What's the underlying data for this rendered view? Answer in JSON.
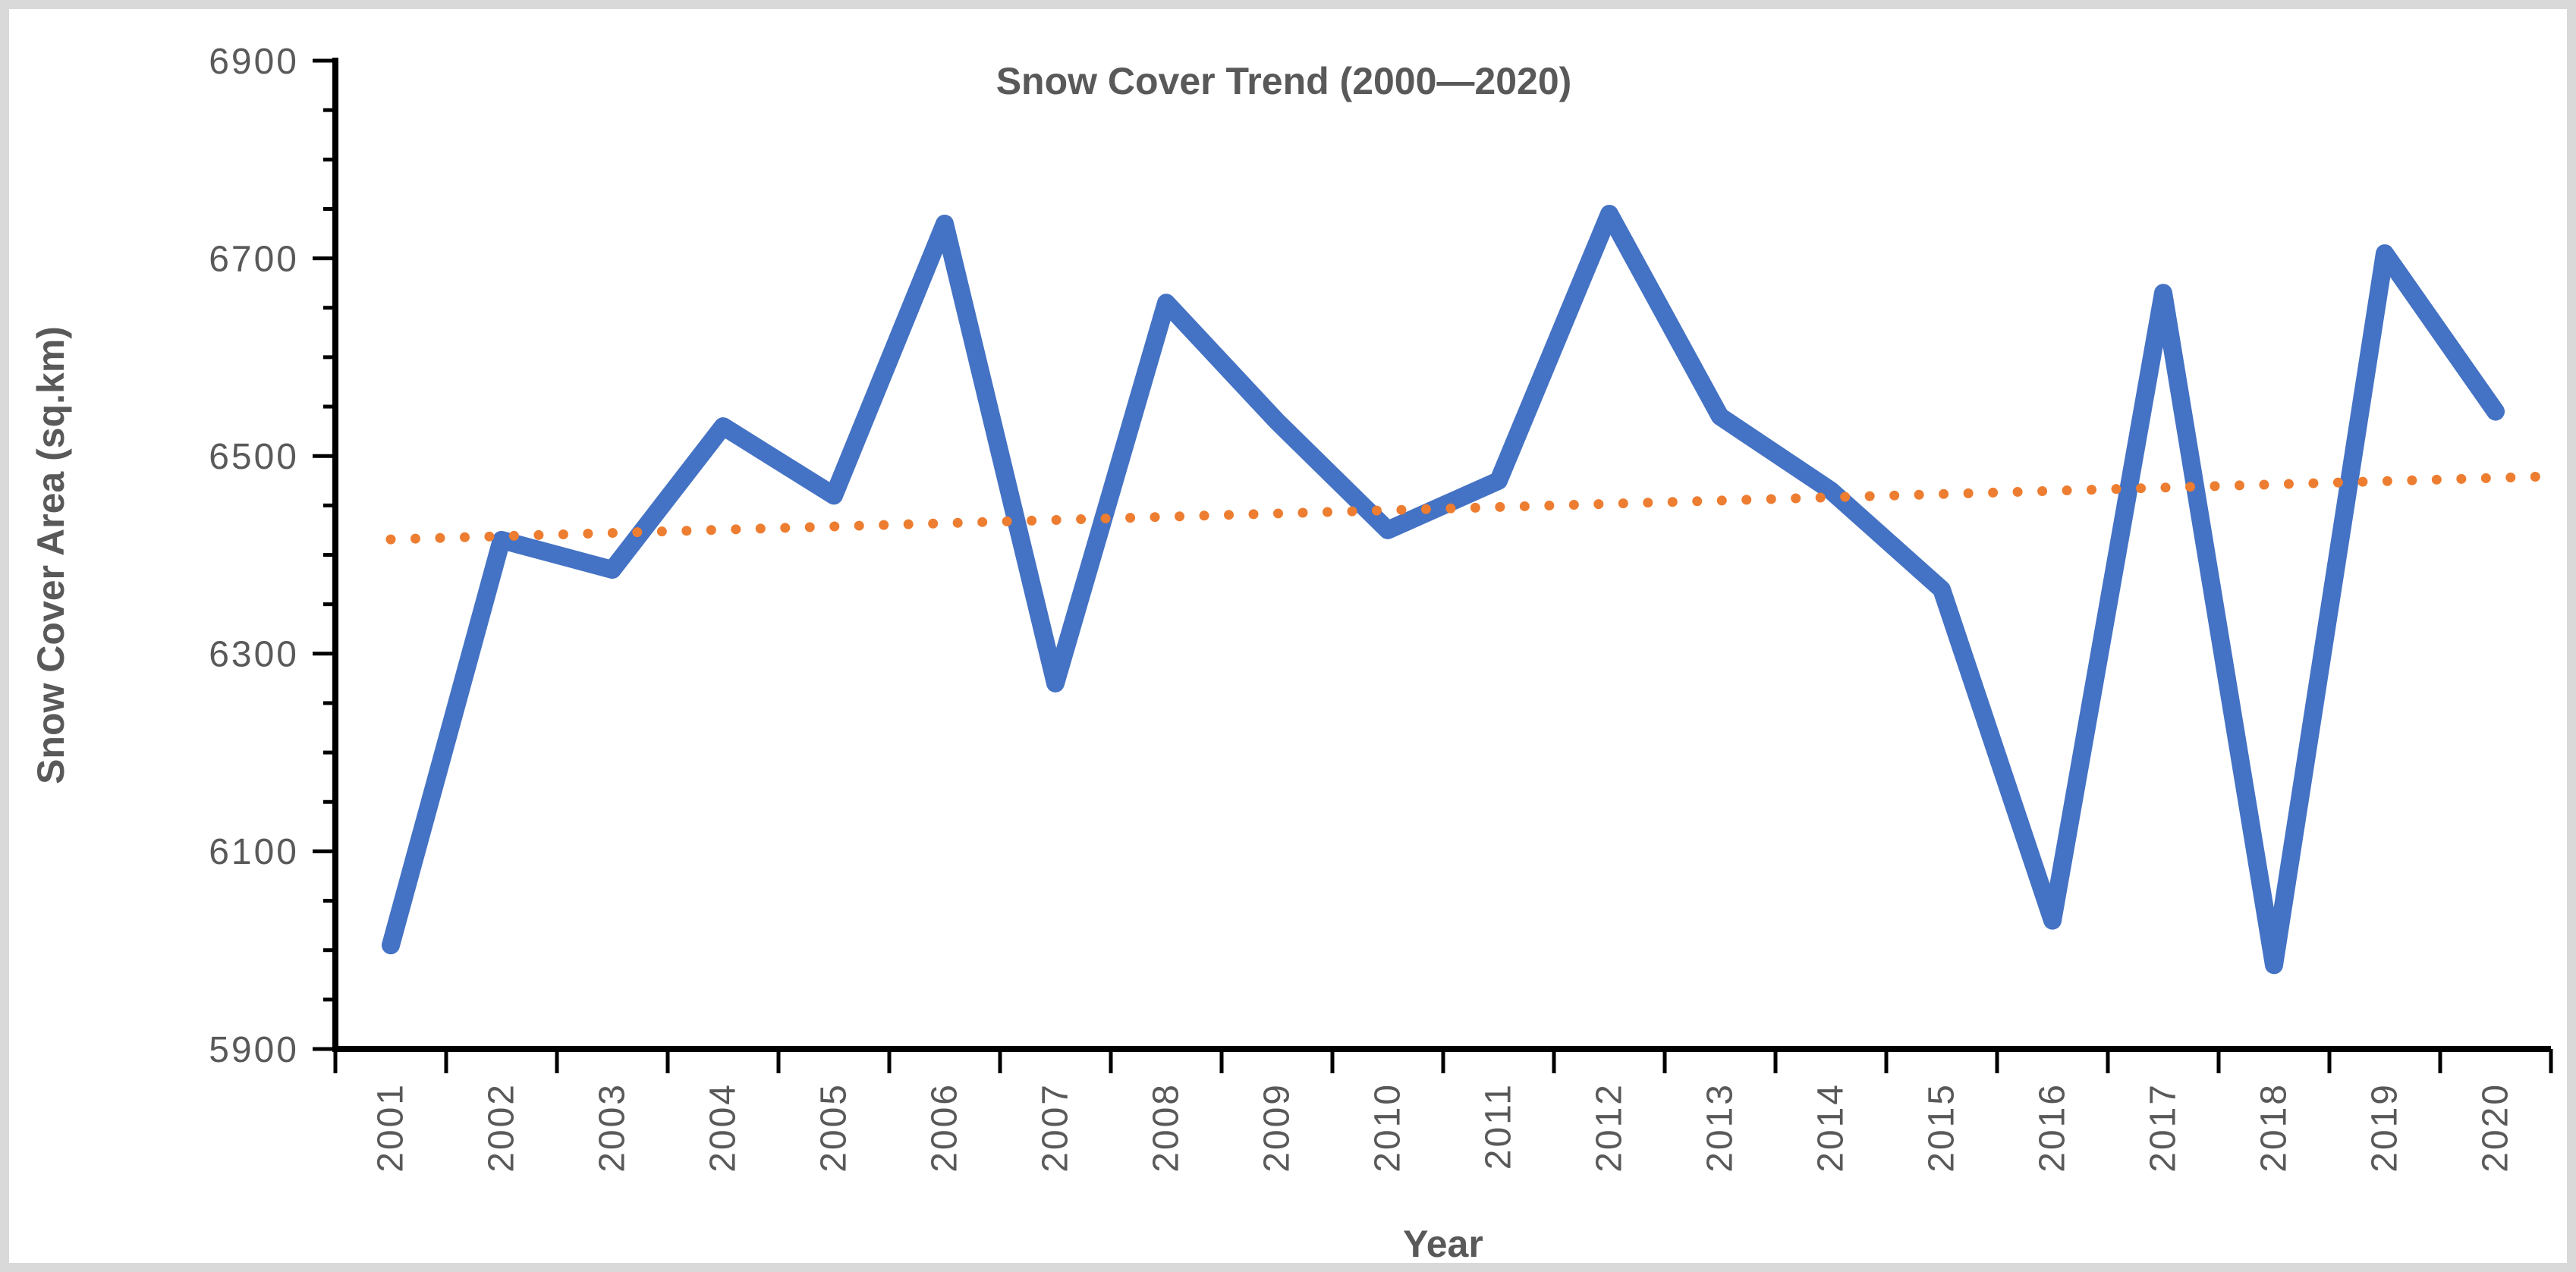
{
  "figure": {
    "background": "#ffffff",
    "border_color": "#d9d9d9"
  },
  "chart_data": {
    "type": "line",
    "title": "Snow Cover Trend (2000—2020)",
    "xlabel": "Year",
    "ylabel": "Snow Cover Area (sq.km)",
    "categories": [
      "2001",
      "2002",
      "2003",
      "2004",
      "2005",
      "2006",
      "2007",
      "2008",
      "2009",
      "2010",
      "2011",
      "2012",
      "2013",
      "2014",
      "2015",
      "2016",
      "2017",
      "2018",
      "2019",
      "2020"
    ],
    "series": [
      {
        "name": "Snow Cover Area",
        "values": [
          6005,
          6415,
          6385,
          6530,
          6460,
          6735,
          6270,
          6655,
          6535,
          6425,
          6475,
          6745,
          6540,
          6465,
          6365,
          6030,
          6665,
          5985,
          6705,
          6545
        ],
        "color": "#4472C4",
        "style": "solid"
      },
      {
        "name": "Linear Trendline",
        "type": "linear_trend",
        "color": "#ED7D31",
        "style": "dotted"
      }
    ],
    "ylim": [
      5900,
      6900
    ],
    "y_ticks": [
      5900,
      6100,
      6300,
      6500,
      6700,
      6900
    ],
    "y_minor_tick_step": 50,
    "grid": false,
    "legend": "none",
    "axis_color": "#000000",
    "text_color": "#595959"
  }
}
